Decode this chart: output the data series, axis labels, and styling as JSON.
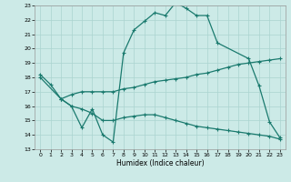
{
  "xlabel": "Humidex (Indice chaleur)",
  "xlim": [
    -0.5,
    23.5
  ],
  "ylim": [
    13,
    23
  ],
  "xticks": [
    0,
    1,
    2,
    3,
    4,
    5,
    6,
    7,
    8,
    9,
    10,
    11,
    12,
    13,
    14,
    15,
    16,
    17,
    18,
    19,
    20,
    21,
    22,
    23
  ],
  "yticks": [
    13,
    14,
    15,
    16,
    17,
    18,
    19,
    20,
    21,
    22,
    23
  ],
  "bg_color": "#cceae7",
  "grid_color": "#aad4d0",
  "line_color": "#1a7a6e",
  "line1_x": [
    0,
    1,
    2,
    3,
    4,
    5,
    6,
    7,
    8,
    9,
    10,
    11,
    12,
    13,
    14,
    15,
    16,
    17,
    20,
    21,
    22,
    23
  ],
  "line1_y": [
    18.2,
    17.5,
    16.5,
    16.0,
    14.5,
    15.8,
    14.0,
    13.5,
    19.7,
    21.3,
    21.9,
    22.5,
    22.3,
    23.2,
    22.8,
    22.3,
    22.3,
    20.4,
    19.3,
    17.4,
    14.9,
    13.8
  ],
  "line2_x": [
    0,
    2,
    3,
    4,
    5,
    6,
    7,
    8,
    9,
    10,
    11,
    12,
    13,
    14,
    15,
    16,
    17,
    18,
    19,
    20,
    21,
    22,
    23
  ],
  "line2_y": [
    18.0,
    16.5,
    16.8,
    17.0,
    17.0,
    17.0,
    17.0,
    17.2,
    17.3,
    17.5,
    17.7,
    17.8,
    17.9,
    18.0,
    18.2,
    18.3,
    18.5,
    18.7,
    18.9,
    19.0,
    19.1,
    19.2,
    19.3
  ],
  "line3_x": [
    2,
    3,
    4,
    5,
    6,
    7,
    8,
    9,
    10,
    11,
    12,
    13,
    14,
    15,
    16,
    17,
    18,
    19,
    20,
    21,
    22,
    23
  ],
  "line3_y": [
    16.5,
    16.0,
    15.8,
    15.5,
    15.0,
    15.0,
    15.2,
    15.3,
    15.4,
    15.4,
    15.2,
    15.0,
    14.8,
    14.6,
    14.5,
    14.4,
    14.3,
    14.2,
    14.1,
    14.0,
    13.9,
    13.7
  ]
}
